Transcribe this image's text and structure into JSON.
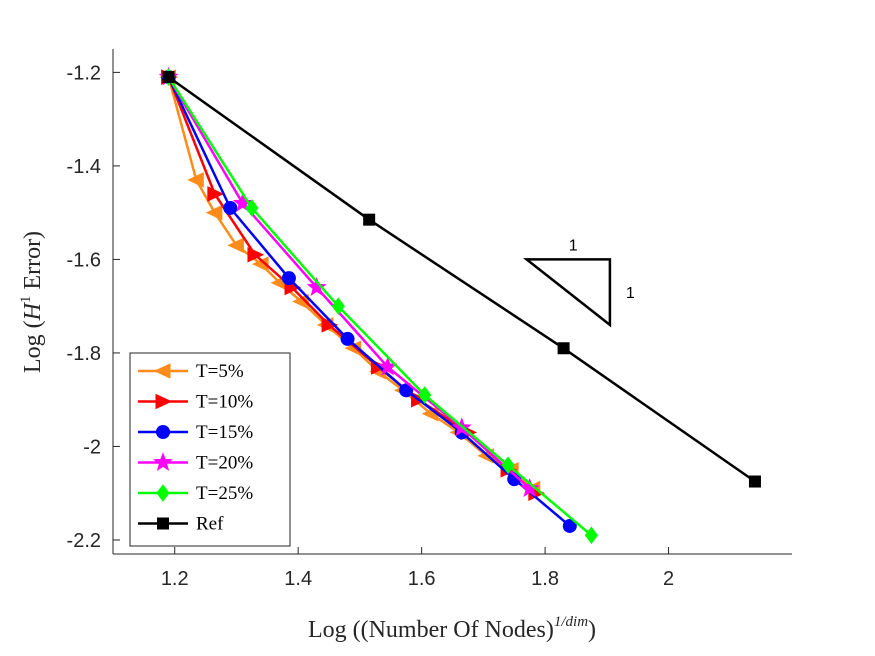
{
  "chart_data": {
    "type": "line",
    "xlabel": {
      "prefix": "Log",
      "inner": "(Number Of Nodes)",
      "sup": "1/dim"
    },
    "ylabel": {
      "prefix": "Log",
      "script": "H",
      "sup": "1",
      "word": "Error"
    },
    "xlim": [
      1.1,
      2.2
    ],
    "ylim": [
      -2.23,
      -1.15
    ],
    "xticks": [
      1.2,
      1.4,
      1.6,
      1.8,
      2
    ],
    "xtick_labels": [
      "1.2",
      "1.4",
      "1.6",
      "1.8",
      "2"
    ],
    "yticks": [
      -1.2,
      -1.4,
      -1.6,
      -1.8,
      -2,
      -2.2
    ],
    "ytick_labels": [
      "-1.2",
      "-1.4",
      "-1.6",
      "-1.8",
      "-2",
      "-2.2"
    ],
    "grid": false,
    "legend_position": "bottom-left",
    "series": [
      {
        "name": "T=5%",
        "color": "#FF8C1A",
        "marker": "triangle-left",
        "x": [
          1.19,
          1.235,
          1.265,
          1.3,
          1.34,
          1.37,
          1.405,
          1.445,
          1.49,
          1.53,
          1.57,
          1.615,
          1.66,
          1.705,
          1.745,
          1.78
        ],
        "y": [
          -1.21,
          -1.43,
          -1.5,
          -1.57,
          -1.61,
          -1.65,
          -1.69,
          -1.74,
          -1.79,
          -1.84,
          -1.88,
          -1.93,
          -1.97,
          -2.02,
          -2.05,
          -2.09
        ]
      },
      {
        "name": "T=10%",
        "color": "#FF0000",
        "marker": "triangle-right",
        "x": [
          1.19,
          1.265,
          1.33,
          1.39,
          1.45,
          1.53,
          1.595,
          1.675,
          1.74,
          1.785
        ],
        "y": [
          -1.21,
          -1.46,
          -1.59,
          -1.66,
          -1.74,
          -1.83,
          -1.9,
          -1.97,
          -2.05,
          -2.1
        ]
      },
      {
        "name": "T=15%",
        "color": "#0000FF",
        "marker": "circle",
        "x": [
          1.19,
          1.29,
          1.385,
          1.48,
          1.575,
          1.665,
          1.75,
          1.84
        ],
        "y": [
          -1.21,
          -1.49,
          -1.64,
          -1.77,
          -1.88,
          -1.97,
          -2.07,
          -2.17
        ]
      },
      {
        "name": "T=20%",
        "color": "#FF00FF",
        "marker": "star",
        "x": [
          1.19,
          1.31,
          1.43,
          1.545,
          1.665,
          1.775
        ],
        "y": [
          -1.21,
          -1.48,
          -1.66,
          -1.83,
          -1.96,
          -2.09
        ]
      },
      {
        "name": "T=25%",
        "color": "#00FF00",
        "marker": "diamond",
        "x": [
          1.19,
          1.325,
          1.465,
          1.605,
          1.74,
          1.875
        ],
        "y": [
          -1.21,
          -1.49,
          -1.7,
          -1.89,
          -2.04,
          -2.19
        ]
      },
      {
        "name": "Ref",
        "color": "#000000",
        "marker": "square",
        "x": [
          1.19,
          1.515,
          1.83,
          2.14
        ],
        "y": [
          -1.21,
          -1.515,
          -1.79,
          -2.075
        ]
      }
    ],
    "annotations": [
      {
        "type": "slope-triangle",
        "x": [
          1.77,
          1.905,
          1.905
        ],
        "y": [
          -1.6,
          -1.6,
          -1.74
        ],
        "top_label": "1",
        "side_label": "1"
      }
    ]
  }
}
